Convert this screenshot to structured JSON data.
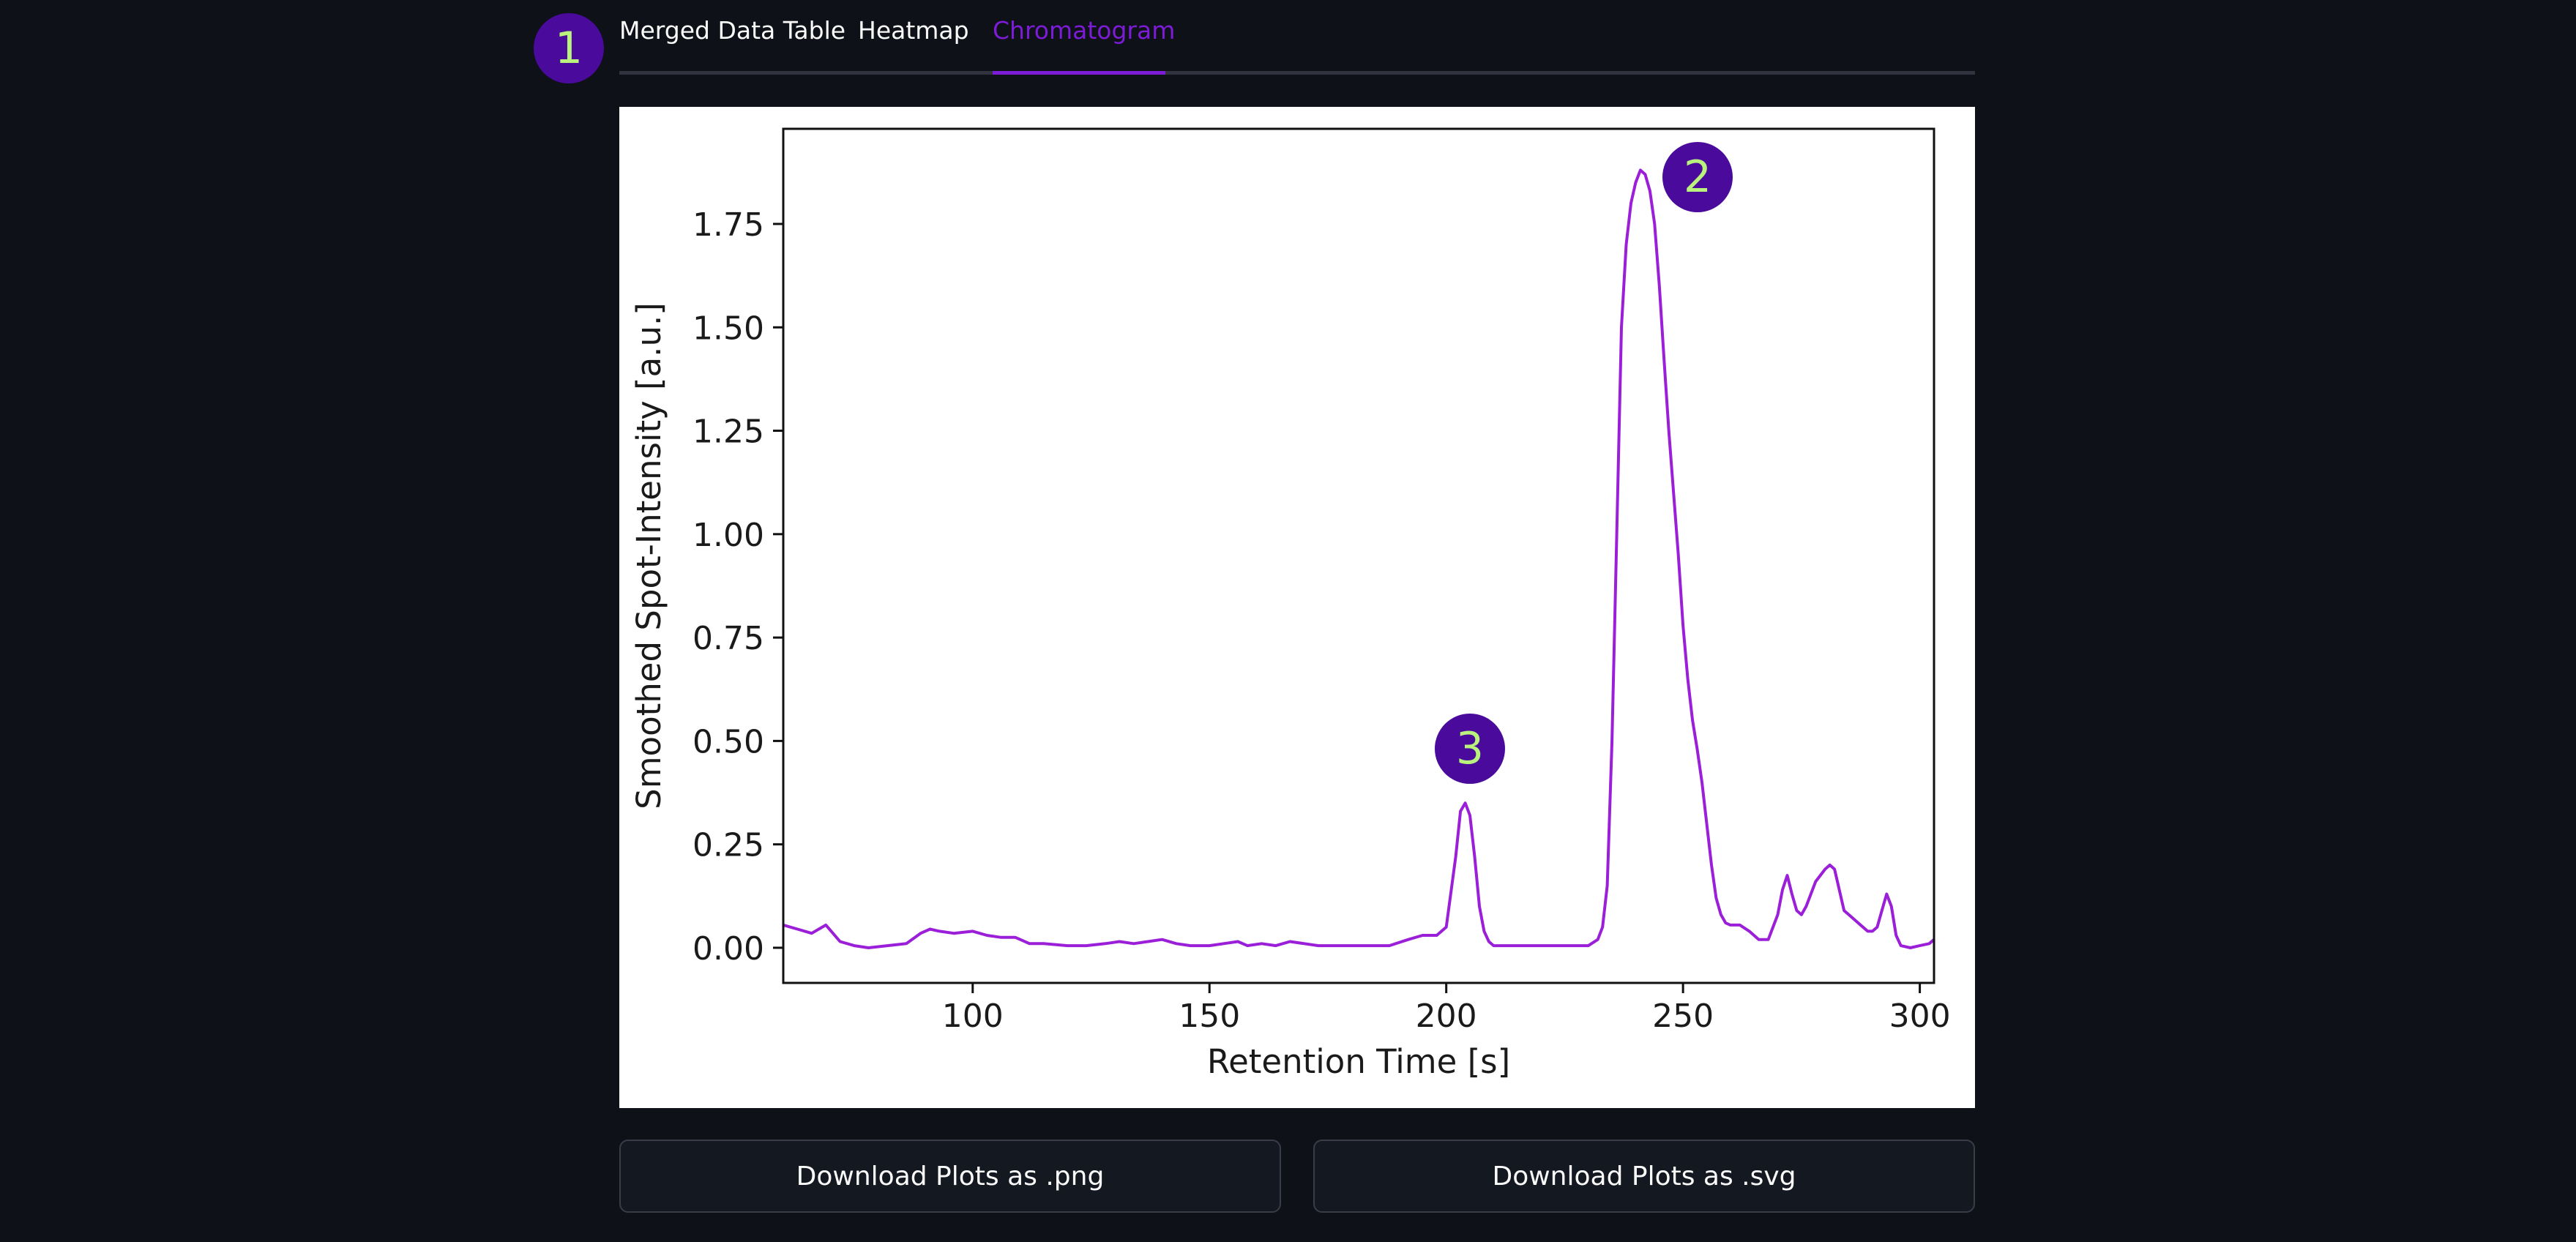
{
  "tabs": [
    {
      "label": "Merged Data Table",
      "active": false
    },
    {
      "label": "Heatmap",
      "active": false
    },
    {
      "label": "Chromatogram",
      "active": true
    }
  ],
  "annotations": {
    "badge_1": "1",
    "badge_2": "2",
    "badge_3": "3"
  },
  "colors": {
    "accent": "#7c1cd6",
    "badge_bg": "#4a0a9c",
    "badge_text": "#b9f27c",
    "line": "#9b1fd8",
    "background": "#0e1117"
  },
  "buttons": {
    "download_png": "Download Plots as .png",
    "download_svg": "Download Plots as .svg"
  },
  "chart_data": {
    "type": "line",
    "xlabel": "Retention Time [s]",
    "ylabel": "Smoothed Spot-Intensity [a.u.]",
    "xlim": [
      60,
      303
    ],
    "ylim": [
      -0.085,
      1.98
    ],
    "xticks": [
      100,
      150,
      200,
      250,
      300
    ],
    "yticks": [
      0.0,
      0.25,
      0.5,
      0.75,
      1.0,
      1.25,
      1.5,
      1.75
    ],
    "ytick_labels": [
      "0.00",
      "0.25",
      "0.50",
      "0.75",
      "1.00",
      "1.25",
      "1.50",
      "1.75"
    ],
    "grid": false,
    "series": [
      {
        "color": "#9b1fd8",
        "x": [
          60,
          63,
          66,
          69,
          72,
          75,
          78,
          82,
          86,
          89,
          91,
          93,
          96,
          100,
          103,
          106,
          109,
          112,
          115,
          120,
          124,
          128,
          131,
          134,
          137,
          140,
          143,
          146,
          150,
          153,
          156,
          158,
          161,
          164,
          167,
          170,
          173,
          176,
          180,
          184,
          188,
          192,
          195,
          198,
          200,
          202,
          203,
          204,
          205,
          206,
          207,
          208,
          209,
          210,
          212,
          215,
          220,
          225,
          230,
          232,
          233,
          234,
          235,
          236,
          237,
          238,
          239,
          240,
          241,
          242,
          243,
          244,
          245,
          246,
          247,
          248,
          249,
          250,
          251,
          252,
          253,
          254,
          255,
          256,
          257,
          258,
          259,
          260,
          262,
          264,
          266,
          268,
          270,
          271,
          272,
          273,
          274,
          275,
          276,
          278,
          280,
          281,
          282,
          283,
          284,
          285,
          287,
          289,
          290,
          291,
          292,
          293,
          294,
          295,
          296,
          298,
          300,
          302,
          303
        ],
        "y": [
          0.055,
          0.045,
          0.035,
          0.055,
          0.015,
          0.005,
          0.0,
          0.005,
          0.01,
          0.035,
          0.045,
          0.04,
          0.035,
          0.04,
          0.03,
          0.025,
          0.025,
          0.01,
          0.01,
          0.005,
          0.005,
          0.01,
          0.015,
          0.01,
          0.015,
          0.02,
          0.01,
          0.005,
          0.005,
          0.01,
          0.015,
          0.005,
          0.01,
          0.005,
          0.015,
          0.01,
          0.005,
          0.005,
          0.005,
          0.005,
          0.005,
          0.02,
          0.03,
          0.03,
          0.05,
          0.22,
          0.33,
          0.35,
          0.32,
          0.22,
          0.1,
          0.04,
          0.015,
          0.005,
          0.005,
          0.005,
          0.005,
          0.005,
          0.005,
          0.02,
          0.05,
          0.15,
          0.5,
          1.0,
          1.5,
          1.7,
          1.8,
          1.85,
          1.88,
          1.87,
          1.83,
          1.75,
          1.6,
          1.42,
          1.25,
          1.1,
          0.95,
          0.78,
          0.65,
          0.55,
          0.48,
          0.4,
          0.3,
          0.2,
          0.12,
          0.08,
          0.06,
          0.055,
          0.055,
          0.04,
          0.02,
          0.02,
          0.08,
          0.14,
          0.175,
          0.13,
          0.09,
          0.08,
          0.1,
          0.16,
          0.19,
          0.2,
          0.19,
          0.14,
          0.09,
          0.08,
          0.06,
          0.04,
          0.04,
          0.05,
          0.09,
          0.13,
          0.1,
          0.03,
          0.005,
          0.0,
          0.005,
          0.01,
          0.02
        ]
      }
    ]
  }
}
